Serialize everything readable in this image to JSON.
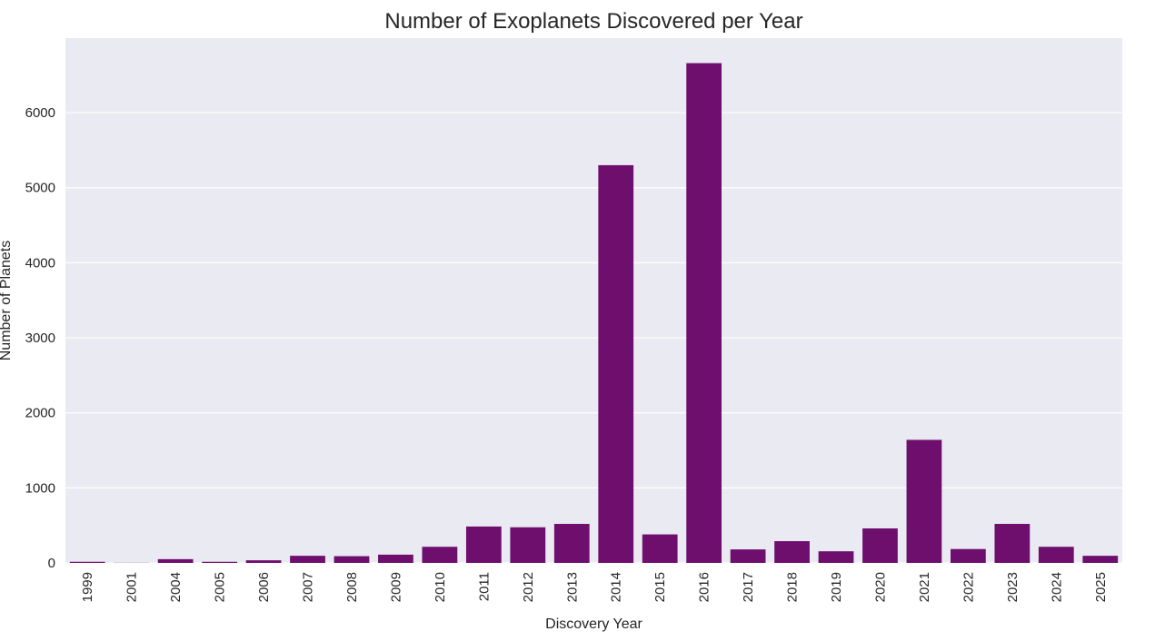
{
  "chart_data": {
    "type": "bar",
    "title": "Number of Exoplanets Discovered per Year",
    "xlabel": "Discovery Year",
    "ylabel": "Number of Planets",
    "categories": [
      "1999",
      "2001",
      "2004",
      "2005",
      "2006",
      "2007",
      "2008",
      "2009",
      "2010",
      "2011",
      "2012",
      "2013",
      "2014",
      "2015",
      "2016",
      "2017",
      "2018",
      "2019",
      "2020",
      "2021",
      "2022",
      "2023",
      "2024",
      "2025"
    ],
    "values": [
      15,
      2,
      50,
      15,
      35,
      95,
      90,
      110,
      215,
      485,
      475,
      520,
      5300,
      380,
      6660,
      180,
      290,
      155,
      460,
      1640,
      185,
      520,
      215,
      95
    ],
    "ylim": [
      0,
      6993
    ],
    "yticks": [
      0,
      1000,
      2000,
      3000,
      4000,
      5000,
      6000
    ],
    "grid": true,
    "bar_color": "#6e0f6e",
    "background_color": "#eaeaf2",
    "grid_color": "#ffffff"
  }
}
